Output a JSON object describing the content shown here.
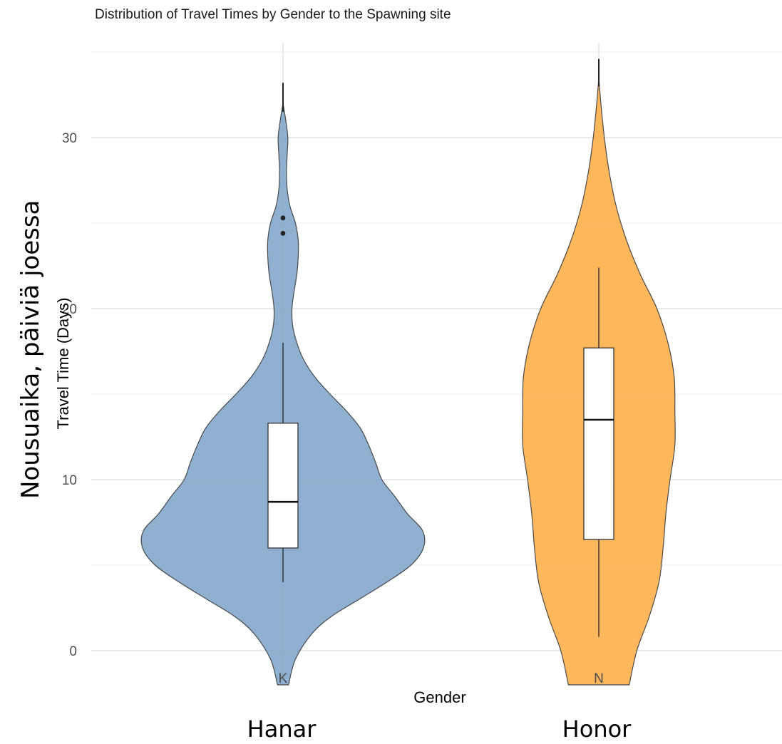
{
  "chart_data": {
    "type": "violin",
    "title": "Distribution of Travel Times by Gender to the Spawning site",
    "xlabel": "Gender",
    "ylabel": "Travel Time (Days)",
    "categories": [
      "K",
      "N"
    ],
    "ylim": [
      -2,
      35
    ],
    "yticks": [
      0,
      10,
      20,
      30
    ],
    "grid": true,
    "series": [
      {
        "category": "K",
        "color": "#86a9cc",
        "box": {
          "whisker_low": 4,
          "q1": 6,
          "median": 8.7,
          "q3": 13.3,
          "whisker_high": 18
        },
        "outliers": [
          24.4,
          25.3,
          33.2
        ],
        "density": [
          [
            -2,
            0.08
          ],
          [
            -0.5,
            0.18
          ],
          [
            1,
            0.42
          ],
          [
            2,
            0.7
          ],
          [
            3,
            1.1
          ],
          [
            4,
            1.5
          ],
          [
            5,
            1.85
          ],
          [
            6,
            2.03
          ],
          [
            7,
            2.02
          ],
          [
            8,
            1.8
          ],
          [
            9,
            1.62
          ],
          [
            10,
            1.43
          ],
          [
            11,
            1.34
          ],
          [
            12,
            1.24
          ],
          [
            13,
            1.12
          ],
          [
            14,
            0.92
          ],
          [
            15,
            0.68
          ],
          [
            16,
            0.46
          ],
          [
            17,
            0.3
          ],
          [
            18,
            0.2
          ],
          [
            19,
            0.14
          ],
          [
            20,
            0.13
          ],
          [
            21,
            0.16
          ],
          [
            22,
            0.2
          ],
          [
            23,
            0.22
          ],
          [
            24,
            0.22
          ],
          [
            25,
            0.18
          ],
          [
            26,
            0.1
          ],
          [
            27,
            0.06
          ],
          [
            28,
            0.05
          ],
          [
            29,
            0.06
          ],
          [
            30,
            0.07
          ],
          [
            31,
            0.04
          ],
          [
            32,
            0.0
          ]
        ]
      },
      {
        "category": "N",
        "color": "#ffb14e",
        "box": {
          "whisker_low": 0.8,
          "q1": 6.5,
          "median": 13.5,
          "q3": 17.7,
          "whisker_high": 22.4
        },
        "outliers": [
          34.6
        ],
        "density": [
          [
            -2,
            0.44
          ],
          [
            0,
            0.55
          ],
          [
            2,
            0.73
          ],
          [
            4,
            0.87
          ],
          [
            6,
            0.93
          ],
          [
            8,
            0.97
          ],
          [
            10,
            1.03
          ],
          [
            12,
            1.1
          ],
          [
            14,
            1.1
          ],
          [
            16,
            1.09
          ],
          [
            18,
            1.0
          ],
          [
            20,
            0.84
          ],
          [
            22,
            0.6
          ],
          [
            24,
            0.4
          ],
          [
            26,
            0.25
          ],
          [
            28,
            0.15
          ],
          [
            30,
            0.08
          ],
          [
            32,
            0.03
          ],
          [
            33.5,
            0.0
          ]
        ]
      }
    ]
  },
  "overlay": {
    "ylabel": "Nousuaika, päiviä joessa",
    "categories": [
      "Hanar",
      "Honor"
    ]
  }
}
